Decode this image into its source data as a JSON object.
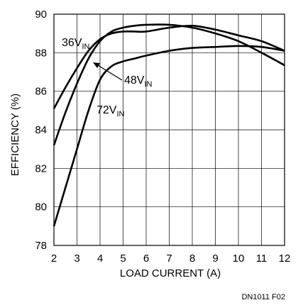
{
  "chart_data": {
    "type": "line",
    "xlabel": "LOAD CURRENT (A)",
    "ylabel": "EFFICIENCY (%)",
    "xlim": [
      2,
      12
    ],
    "ylim": [
      78,
      90
    ],
    "x_ticks": [
      2,
      3,
      4,
      5,
      6,
      7,
      8,
      9,
      10,
      11,
      12
    ],
    "y_ticks": [
      78,
      80,
      82,
      84,
      86,
      88,
      90
    ],
    "grid": true,
    "legend": "inline labels on curves",
    "line_color": "#000000",
    "series": [
      {
        "name": "36VIN",
        "label_main": "36V",
        "label_sub": "IN",
        "x": [
          2,
          2.5,
          3,
          3.5,
          4,
          4.5,
          5,
          5.5,
          6,
          7,
          8,
          9,
          10,
          11,
          12
        ],
        "y": [
          85.1,
          86.2,
          87.2,
          88.1,
          88.7,
          89.0,
          89.1,
          89.1,
          89.1,
          89.3,
          89.4,
          89.2,
          88.9,
          88.6,
          88.1
        ]
      },
      {
        "name": "48VIN",
        "label_main": "48V",
        "label_sub": "IN",
        "x": [
          2,
          2.5,
          3,
          3.5,
          4,
          4.5,
          5,
          5.5,
          6,
          7,
          8,
          9,
          10,
          11,
          12
        ],
        "y": [
          83.2,
          84.9,
          86.4,
          87.7,
          88.6,
          89.1,
          89.3,
          89.4,
          89.45,
          89.45,
          89.3,
          89.0,
          88.6,
          88.0,
          87.35
        ]
      },
      {
        "name": "72VIN",
        "label_main": "72V",
        "label_sub": "IN",
        "x": [
          2,
          2.5,
          3,
          3.5,
          4,
          4.5,
          5,
          5.5,
          6,
          7,
          8,
          9,
          10,
          11,
          12
        ],
        "y": [
          79.0,
          81.0,
          83.0,
          85.0,
          86.6,
          87.3,
          87.55,
          87.7,
          87.85,
          88.1,
          88.25,
          88.3,
          88.35,
          88.3,
          88.1
        ]
      }
    ]
  },
  "figure_id": "DN1011 F02"
}
